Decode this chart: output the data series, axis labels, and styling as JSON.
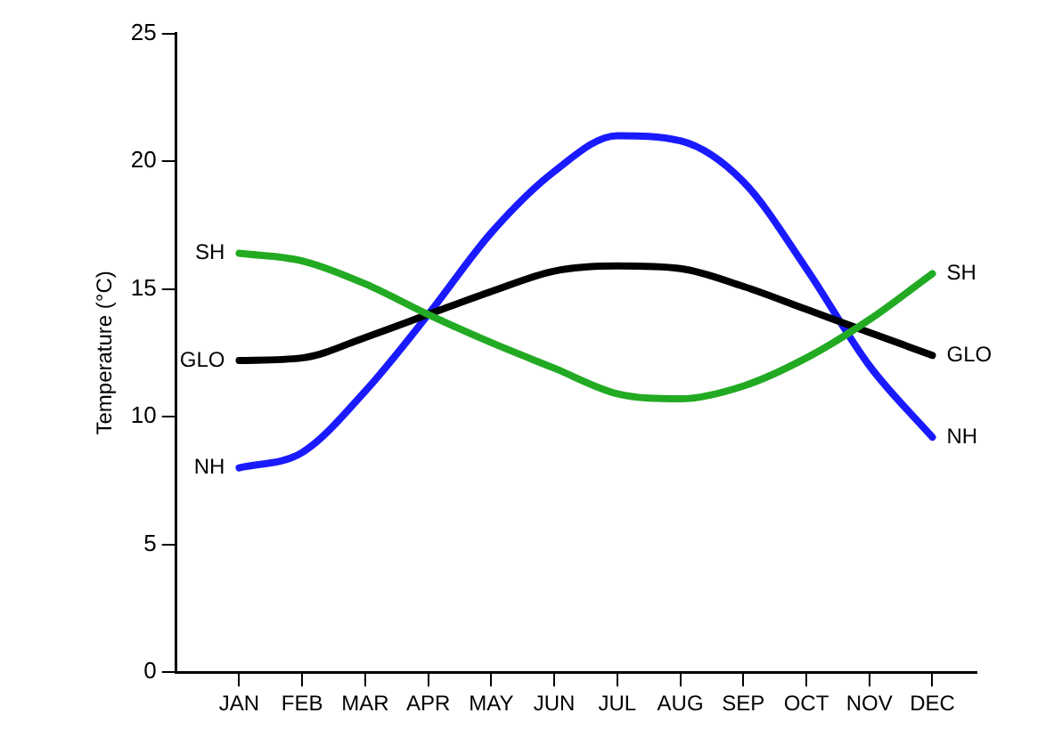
{
  "chart_data": {
    "type": "line",
    "ylabel": "Temperature (°C)",
    "categories": [
      "JAN",
      "FEB",
      "MAR",
      "APR",
      "MAY",
      "JUN",
      "JUL",
      "AUG",
      "SEP",
      "OCT",
      "NOV",
      "DEC"
    ],
    "ylim": [
      0,
      25
    ],
    "yticks": [
      0,
      5,
      10,
      15,
      20,
      25
    ],
    "grid": false,
    "legend": false,
    "marker": "none",
    "series": [
      {
        "name": "SH",
        "color": "#22aa22",
        "values": [
          16.4,
          16.1,
          15.2,
          14.0,
          12.9,
          11.9,
          10.9,
          10.7,
          11.2,
          12.3,
          13.8,
          15.6
        ]
      },
      {
        "name": "GLO",
        "color": "#000000",
        "values": [
          12.2,
          12.3,
          13.1,
          14.0,
          14.9,
          15.7,
          15.9,
          15.8,
          15.1,
          14.2,
          13.3,
          12.4
        ]
      },
      {
        "name": "NH",
        "color": "#1a1aff",
        "values": [
          8.0,
          8.6,
          11.0,
          14.0,
          17.2,
          19.6,
          21.0,
          20.8,
          19.2,
          15.8,
          12.0,
          9.2
        ]
      }
    ]
  }
}
